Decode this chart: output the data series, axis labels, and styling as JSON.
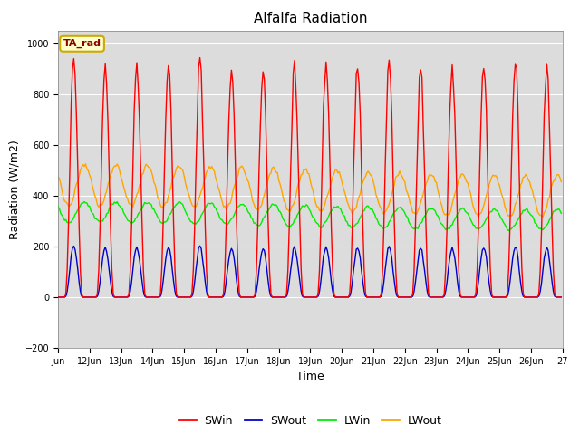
{
  "title": "Alfalfa Radiation",
  "xlabel": "Time",
  "ylabel": "Radiation (W/m2)",
  "ylim": [
    -200,
    1050
  ],
  "xlim": [
    0,
    384
  ],
  "background_color": "#dcdcdc",
  "annotation_text": "TA_rad",
  "legend_entries": [
    "SWin",
    "SWout",
    "LWin",
    "LWout"
  ],
  "legend_colors": [
    "#ff0000",
    "#0000cc",
    "#00ee00",
    "#ffa500"
  ],
  "n_days": 16,
  "hours_per_day": 24,
  "SWin_peak": 980,
  "SWout_peak": 210,
  "LWin_mean": 320,
  "LWin_amp": 40,
  "LWout_mean": 420,
  "LWout_amp": 80,
  "tick_labels": [
    "Jun",
    "12Jun",
    "13Jun",
    "14Jun",
    "15Jun",
    "16Jun",
    "17Jun",
    "18Jun",
    "19Jun",
    "20Jun",
    "21Jun",
    "22Jun",
    "23Jun",
    "24Jun",
    "25Jun",
    "26Jun",
    "27"
  ],
  "tick_positions": [
    0,
    24,
    48,
    72,
    96,
    120,
    144,
    168,
    192,
    216,
    240,
    264,
    288,
    312,
    336,
    360,
    384
  ],
  "yticks": [
    -200,
    0,
    200,
    400,
    600,
    800,
    1000
  ],
  "title_fontsize": 11,
  "axis_label_fontsize": 9,
  "tick_fontsize": 7,
  "legend_fontsize": 9
}
